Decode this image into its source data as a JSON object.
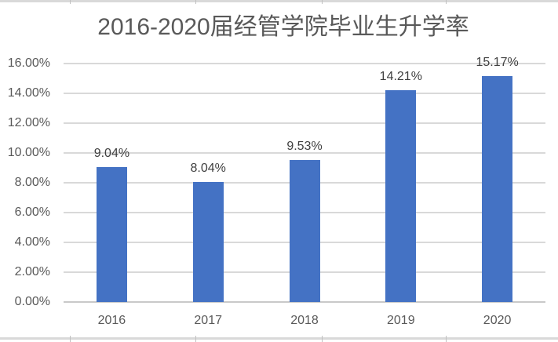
{
  "chart_data": {
    "type": "bar",
    "title": "2016-2020届经管学院毕业生升学率",
    "categories": [
      "2016",
      "2017",
      "2018",
      "2019",
      "2020"
    ],
    "values": [
      9.04,
      8.04,
      9.53,
      14.21,
      15.17
    ],
    "data_labels": [
      "9.04%",
      "8.04%",
      "9.53%",
      "14.21%",
      "15.17%"
    ],
    "xlabel": "",
    "ylabel": "",
    "ylim": [
      0,
      16
    ],
    "ytick_step": 2,
    "ytick_labels": [
      "0.00%",
      "2.00%",
      "4.00%",
      "6.00%",
      "8.00%",
      "10.00%",
      "12.00%",
      "14.00%",
      "16.00%"
    ],
    "grid": true,
    "legend": false
  },
  "colors": {
    "bar": "#4472C4",
    "gridline": "#D9D9D9",
    "axis_line": "#C9C9C9",
    "title_text": "#595959",
    "tick_text": "#595959",
    "data_label_text": "#404040",
    "cell_border": "#D9D9D9",
    "cell_tick": "#C0C0C0"
  }
}
